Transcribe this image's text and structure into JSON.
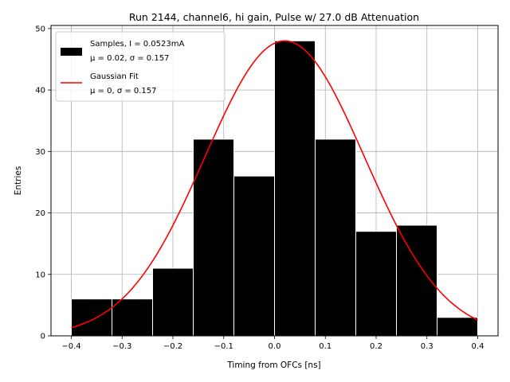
{
  "chart_data": {
    "type": "bar",
    "title": "Run 2144, channel6, hi gain, Pulse w/ 27.0 dB Attenuation",
    "xlabel": "Timing from OFCs [ns]",
    "ylabel": "Entries",
    "xlim": [
      -0.44,
      0.44
    ],
    "ylim": [
      0,
      50.5
    ],
    "xticks": [
      -0.4,
      -0.3,
      -0.2,
      -0.1,
      0.0,
      0.1,
      0.2,
      0.3,
      0.4
    ],
    "xtick_labels": [
      "−0.4",
      "−0.3",
      "−0.2",
      "−0.1",
      "0.0",
      "0.1",
      "0.2",
      "0.3",
      "0.4"
    ],
    "yticks": [
      0,
      10,
      20,
      30,
      40,
      50
    ],
    "ytick_labels": [
      "0",
      "10",
      "20",
      "30",
      "40",
      "50"
    ],
    "grid": true,
    "legend_position": "top-left",
    "histogram": {
      "bin_edges": [
        -0.4,
        -0.32,
        -0.24,
        -0.16,
        -0.08,
        0.0,
        0.08,
        0.16,
        0.24,
        0.32,
        0.4
      ],
      "counts": [
        6,
        6,
        11,
        32,
        26,
        48,
        32,
        17,
        18,
        3
      ],
      "color": "#000000",
      "edge_color": "#ffffff"
    },
    "gaussian_fit": {
      "color": "#ff0000",
      "amplitude": 48,
      "mean": 0.02,
      "sigma": 0.157,
      "x_range": [
        -0.4,
        0.4
      ]
    },
    "legend": [
      {
        "kind": "patch",
        "color": "#000000",
        "line1": "Samples, I = 0.0523mA",
        "line2": "μ = 0.02, σ = 0.157"
      },
      {
        "kind": "line",
        "color": "#ff0000",
        "line1": "Gaussian Fit",
        "line2": "μ = 0, σ = 0.157"
      }
    ]
  }
}
